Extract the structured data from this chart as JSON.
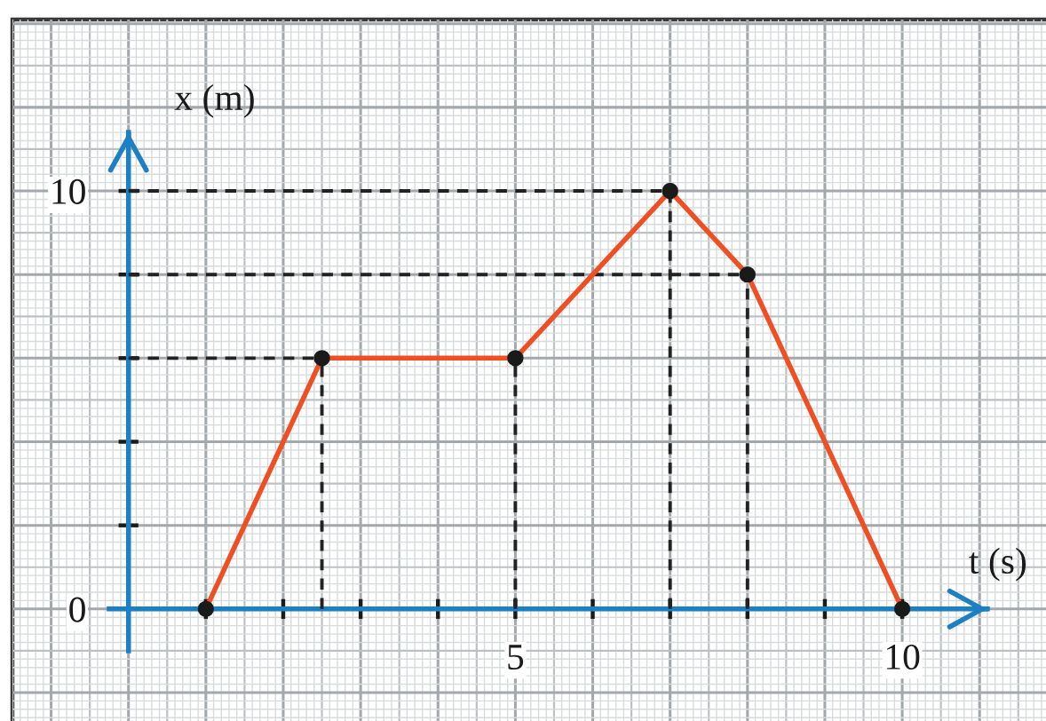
{
  "chart_data": {
    "type": "line",
    "xlabel": "t (s)",
    "ylabel": "x (m)",
    "x": [
      1,
      2.5,
      5,
      7,
      8,
      10
    ],
    "series": [
      {
        "color": "#ef4f23",
        "values": [
          0,
          6,
          6,
          10,
          8,
          0
        ]
      }
    ],
    "xlim": [
      -1.5,
      11.95
    ],
    "ylim": [
      -2.85,
      14.1
    ],
    "xticks": [
      {
        "value": 0,
        "label": null
      },
      {
        "value": 1,
        "label": null
      },
      {
        "value": 2,
        "label": null
      },
      {
        "value": 3,
        "label": null
      },
      {
        "value": 4,
        "label": null
      },
      5,
      {
        "value": 6,
        "label": null
      },
      {
        "value": 7,
        "label": null
      },
      {
        "value": 8,
        "label": null
      },
      {
        "value": 9,
        "label": null
      },
      10
    ],
    "yticks": [
      0,
      {
        "value": 2,
        "label": null
      },
      {
        "value": 4,
        "label": null
      },
      {
        "value": 6,
        "label": null
      },
      {
        "value": 8,
        "label": null
      },
      10
    ],
    "ref_lines": [
      {
        "axis": "y",
        "value": 10,
        "color": "#222222",
        "line_style": "dashed"
      },
      {
        "axis": "y",
        "value": 8,
        "color": "#222222",
        "line_style": "dashed"
      },
      {
        "axis": "y",
        "value": 6,
        "color": "#222222",
        "line_style": "dashed"
      },
      {
        "axis": "x",
        "value": 2.5,
        "color": "#222222",
        "line_style": "dashed"
      },
      {
        "axis": "x",
        "value": 5,
        "color": "#222222",
        "line_style": "dashed"
      },
      {
        "axis": "x",
        "value": 7,
        "color": "#222222",
        "line_style": "dashed"
      },
      {
        "axis": "x",
        "value": 8,
        "color": "#222222",
        "line_style": "dashed"
      }
    ],
    "grid": true,
    "marker": "circle",
    "line_style": "solid"
  }
}
